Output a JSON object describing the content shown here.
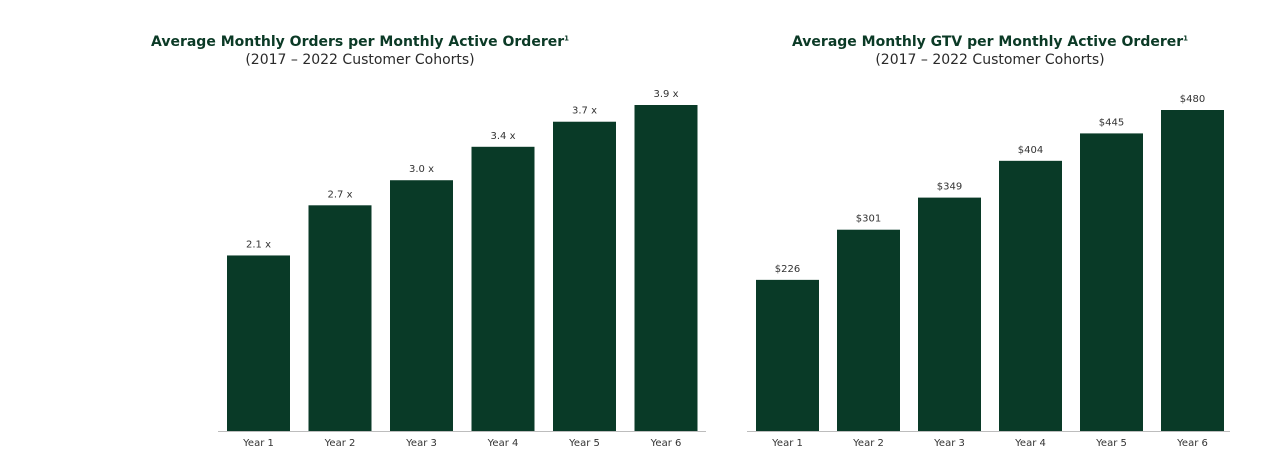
{
  "chart_data": [
    {
      "type": "bar",
      "title": "Average Monthly Orders per Monthly Active Orderer",
      "title_footnote": "1",
      "subtitle": "(2017 – 2022 Customer Cohorts)",
      "categories": [
        "Year 1",
        "Year 2",
        "Year 3",
        "Year 4",
        "Year 5",
        "Year 6"
      ],
      "values": [
        2.1,
        2.7,
        3.0,
        3.4,
        3.7,
        3.9
      ],
      "data_labels": [
        "2.1 x",
        "2.7 x",
        "3.0 x",
        "3.4 x",
        "3.7 x",
        "3.9 x"
      ],
      "ylim": [
        0,
        3.9
      ],
      "color": "#093a27",
      "grid": false,
      "legend": "none"
    },
    {
      "type": "bar",
      "title": "Average Monthly GTV per Monthly Active Orderer",
      "title_footnote": "1",
      "subtitle": "(2017 – 2022 Customer Cohorts)",
      "categories": [
        "Year 1",
        "Year 2",
        "Year 3",
        "Year 4",
        "Year 5",
        "Year 6"
      ],
      "values": [
        226,
        301,
        349,
        404,
        445,
        480
      ],
      "data_labels": [
        "$226",
        "$301",
        "$349",
        "$404",
        "$445",
        "$480"
      ],
      "ylim": [
        0,
        480
      ],
      "color": "#093a27",
      "grid": false,
      "legend": "none"
    }
  ]
}
